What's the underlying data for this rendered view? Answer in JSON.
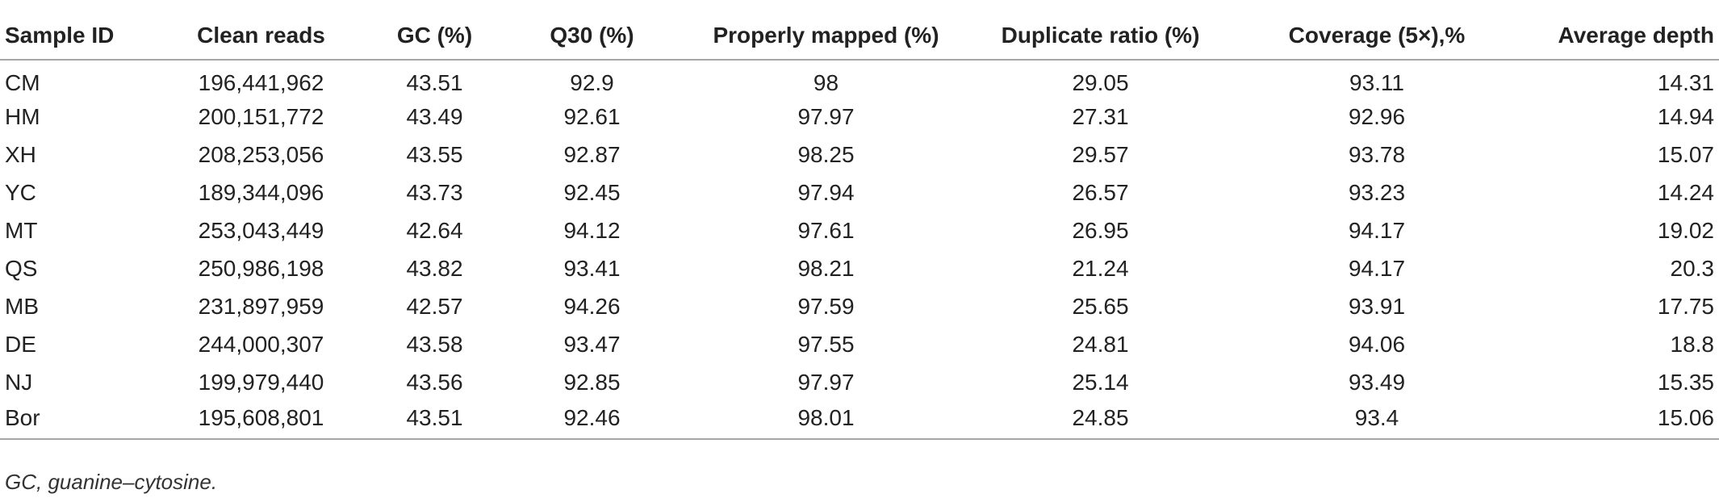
{
  "table": {
    "headers": [
      "Sample ID",
      "Clean reads",
      "GC (%)",
      "Q30 (%)",
      "Properly mapped (%)",
      "Duplicate ratio (%)",
      "Coverage (5×),%",
      "Average depth"
    ],
    "rows": [
      [
        "CM",
        "196,441,962",
        "43.51",
        "92.9",
        "98",
        "29.05",
        "93.11",
        "14.31"
      ],
      [
        "HM",
        "200,151,772",
        "43.49",
        "92.61",
        "97.97",
        "27.31",
        "92.96",
        "14.94"
      ],
      [
        "XH",
        "208,253,056",
        "43.55",
        "92.87",
        "98.25",
        "29.57",
        "93.78",
        "15.07"
      ],
      [
        "YC",
        "189,344,096",
        "43.73",
        "92.45",
        "97.94",
        "26.57",
        "93.23",
        "14.24"
      ],
      [
        "MT",
        "253,043,449",
        "42.64",
        "94.12",
        "97.61",
        "26.95",
        "94.17",
        "19.02"
      ],
      [
        "QS",
        "250,986,198",
        "43.82",
        "93.41",
        "98.21",
        "21.24",
        "94.17",
        "20.3"
      ],
      [
        "MB",
        "231,897,959",
        "42.57",
        "94.26",
        "97.59",
        "25.65",
        "93.91",
        "17.75"
      ],
      [
        "DE",
        "244,000,307",
        "43.58",
        "93.47",
        "97.55",
        "24.81",
        "94.06",
        "18.8"
      ],
      [
        "NJ",
        "199,979,440",
        "43.56",
        "92.85",
        "97.97",
        "25.14",
        "93.49",
        "15.35"
      ],
      [
        "Bor",
        "195,608,801",
        "43.51",
        "92.46",
        "98.01",
        "24.85",
        "93.4",
        "15.06"
      ]
    ]
  },
  "footnote": "GC, guanine–cytosine."
}
